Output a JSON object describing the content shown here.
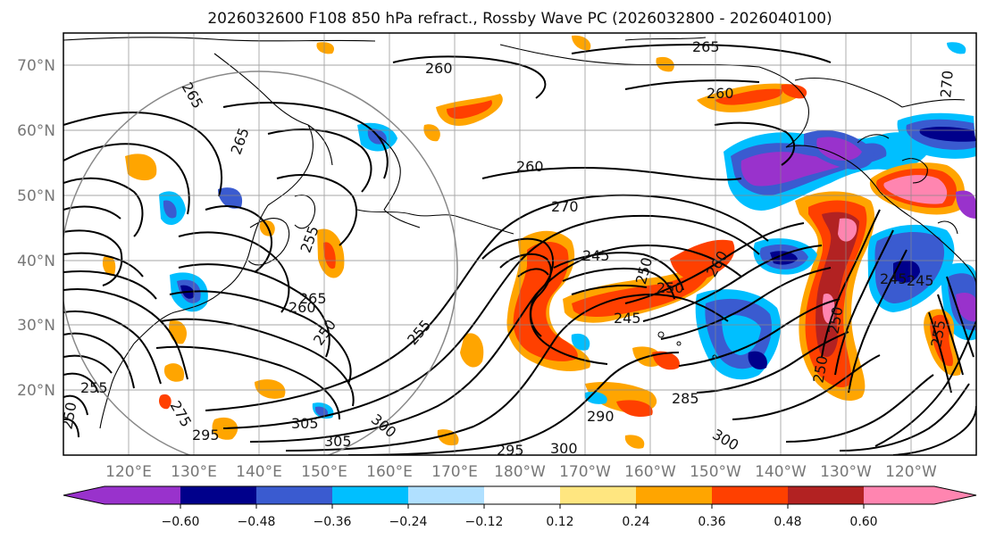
{
  "title": "2026032600 F108 850 hPa refract., Rossby Wave PC (2026032800 - 2026040100)",
  "axes": {
    "lat_labels": [
      "70°N",
      "60°N",
      "50°N",
      "40°N",
      "30°N",
      "20°N"
    ],
    "lon_labels": [
      "120°E",
      "130°E",
      "140°E",
      "150°E",
      "160°E",
      "170°E",
      "180°W",
      "170°W",
      "160°W",
      "150°W",
      "140°W",
      "130°W",
      "120°W"
    ]
  },
  "colorbar": {
    "colors": [
      "#9932cc",
      "#00008b",
      "#3a5bd0",
      "#00bfff",
      "#b0e0ff",
      "#ffffff",
      "#ffe680",
      "#ffa500",
      "#ff4000",
      "#b22222",
      "#ff85b0"
    ],
    "tick_labels": [
      "−0.60",
      "−0.48",
      "−0.36",
      "−0.24",
      "−0.12",
      "0.12",
      "0.24",
      "0.36",
      "0.48",
      "0.60"
    ]
  },
  "contour_labels": [
    "265",
    "260",
    "260",
    "260",
    "270",
    "265",
    "255",
    "265",
    "260",
    "250",
    "255",
    "245",
    "250",
    "250",
    "260",
    "245",
    "245",
    "250",
    "250",
    "290",
    "300",
    "295",
    "300",
    "305",
    "305",
    "300",
    "295",
    "255",
    "250",
    "275",
    "285",
    "245",
    "255",
    "265",
    "270"
  ]
}
